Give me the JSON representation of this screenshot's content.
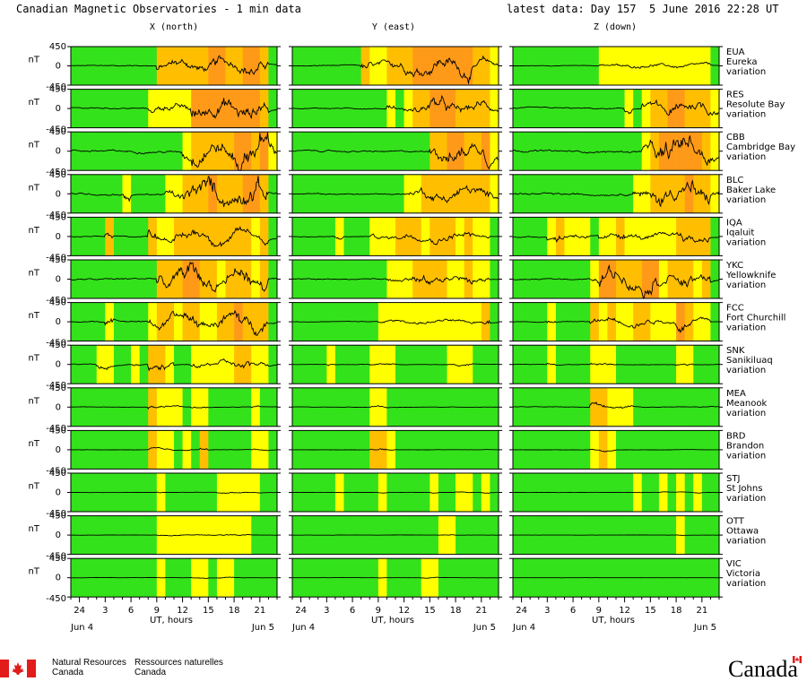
{
  "header": {
    "title": "Canadian Magnetic Observatories - 1 min data",
    "latest": "latest data: Day 157",
    "date": "5 June 2016 22:28 UT"
  },
  "columns": [
    "X (north)",
    "Y (east)",
    "Z (down)"
  ],
  "stations": [
    {
      "code": "EUA",
      "name": "Eureka",
      "suffix": "variation"
    },
    {
      "code": "RES",
      "name": "Resolute Bay",
      "suffix": "variation"
    },
    {
      "code": "CBB",
      "name": "Cambridge Bay",
      "suffix": "variation"
    },
    {
      "code": "BLC",
      "name": "Baker Lake",
      "suffix": "variation"
    },
    {
      "code": "IQA",
      "name": "Iqaluit",
      "suffix": "variation"
    },
    {
      "code": "YKC",
      "name": "Yellowknife",
      "suffix": "variation"
    },
    {
      "code": "FCC",
      "name": "Fort Churchill",
      "suffix": "variation"
    },
    {
      "code": "SNK",
      "name": "Sanikiluaq",
      "suffix": "variation"
    },
    {
      "code": "MEA",
      "name": "Meanook",
      "suffix": "variation"
    },
    {
      "code": "BRD",
      "name": "Brandon",
      "suffix": "variation"
    },
    {
      "code": "STJ",
      "name": "St Johns",
      "suffix": "variation"
    },
    {
      "code": "OTT",
      "name": "Ottawa",
      "suffix": "variation"
    },
    {
      "code": "VIC",
      "name": "Victoria",
      "suffix": "variation"
    }
  ],
  "chart_data": {
    "type": "line",
    "unit": "nT",
    "ytick_labels": [
      "450",
      "0",
      "-450"
    ],
    "ylim": [
      -450,
      450
    ],
    "x_range_hours": [
      23,
      47
    ],
    "xtick_labels": [
      "24",
      "3",
      "6",
      "9",
      "12",
      "15",
      "18",
      "21"
    ],
    "xlabel": "UT, hours",
    "start_label": "Jun  4",
    "end_label": "Jun  5",
    "activity_colors": {
      "quiet": "#33e21a",
      "unsettled": "#ffff00",
      "active": "#ffbf00",
      "storm": "#ff9a18"
    },
    "activity_levels": [
      {
        "X": [
          0,
          0,
          0,
          0,
          0,
          0,
          0,
          0,
          0,
          0,
          2,
          2,
          2,
          2,
          2,
          2,
          3,
          3,
          2,
          2,
          3,
          3,
          2,
          0
        ],
        "Y": [
          0,
          0,
          0,
          0,
          0,
          0,
          0,
          0,
          2,
          1,
          1,
          2,
          2,
          2,
          3,
          3,
          3,
          3,
          3,
          3,
          3,
          2,
          2,
          1
        ],
        "Z": [
          0,
          0,
          0,
          0,
          0,
          0,
          0,
          0,
          0,
          0,
          1,
          1,
          1,
          1,
          1,
          1,
          1,
          1,
          1,
          1,
          1,
          1,
          1,
          0
        ]
      },
      {
        "X": [
          0,
          0,
          0,
          0,
          0,
          0,
          0,
          0,
          0,
          1,
          1,
          1,
          1,
          1,
          3,
          3,
          3,
          3,
          3,
          3,
          3,
          3,
          2,
          0
        ],
        "Y": [
          0,
          0,
          0,
          0,
          0,
          0,
          0,
          0,
          0,
          0,
          0,
          1,
          0,
          1,
          2,
          2,
          3,
          3,
          3,
          2,
          2,
          2,
          2,
          1
        ],
        "Z": [
          0,
          0,
          0,
          0,
          0,
          0,
          0,
          0,
          0,
          0,
          0,
          0,
          0,
          1,
          0,
          1,
          2,
          2,
          3,
          3,
          2,
          2,
          2,
          1
        ]
      },
      {
        "X": [
          0,
          0,
          0,
          0,
          0,
          0,
          0,
          0,
          0,
          0,
          0,
          0,
          0,
          1,
          2,
          2,
          2,
          2,
          2,
          3,
          3,
          2,
          3,
          1
        ],
        "Y": [
          0,
          0,
          0,
          0,
          0,
          0,
          0,
          0,
          0,
          0,
          0,
          0,
          0,
          0,
          0,
          0,
          2,
          2,
          3,
          3,
          2,
          2,
          3,
          1
        ],
        "Z": [
          0,
          0,
          0,
          0,
          0,
          0,
          0,
          0,
          0,
          0,
          0,
          0,
          0,
          0,
          0,
          1,
          2,
          3,
          3,
          3,
          3,
          3,
          2,
          1
        ]
      },
      {
        "X": [
          0,
          0,
          0,
          0,
          0,
          0,
          1,
          0,
          0,
          0,
          0,
          1,
          1,
          2,
          2,
          2,
          3,
          2,
          2,
          2,
          3,
          3,
          2,
          0
        ],
        "Y": [
          0,
          0,
          0,
          0,
          0,
          0,
          0,
          0,
          0,
          0,
          0,
          0,
          0,
          1,
          1,
          2,
          2,
          2,
          2,
          2,
          2,
          2,
          2,
          1
        ],
        "Z": [
          0,
          0,
          0,
          0,
          0,
          0,
          0,
          0,
          0,
          0,
          0,
          0,
          0,
          0,
          1,
          1,
          2,
          2,
          2,
          2,
          3,
          2,
          2,
          1
        ]
      },
      {
        "X": [
          0,
          0,
          0,
          0,
          2,
          0,
          0,
          0,
          0,
          2,
          1,
          1,
          2,
          2,
          2,
          2,
          2,
          2,
          2,
          2,
          2,
          1,
          2,
          0
        ],
        "Y": [
          0,
          0,
          0,
          0,
          0,
          1,
          0,
          0,
          0,
          1,
          1,
          1,
          2,
          2,
          2,
          1,
          2,
          2,
          2,
          1,
          2,
          1,
          1,
          0
        ],
        "Z": [
          0,
          0,
          0,
          0,
          1,
          2,
          1,
          1,
          1,
          0,
          1,
          1,
          2,
          1,
          1,
          1,
          1,
          1,
          1,
          2,
          2,
          2,
          2,
          0
        ]
      },
      {
        "X": [
          0,
          0,
          0,
          0,
          0,
          0,
          0,
          0,
          0,
          0,
          2,
          2,
          2,
          3,
          3,
          2,
          2,
          1,
          2,
          2,
          2,
          1,
          2,
          0
        ],
        "Y": [
          0,
          0,
          0,
          0,
          0,
          0,
          0,
          0,
          0,
          0,
          0,
          1,
          1,
          1,
          2,
          2,
          2,
          2,
          1,
          1,
          2,
          1,
          1,
          0
        ],
        "Z": [
          0,
          0,
          0,
          0,
          0,
          0,
          0,
          0,
          0,
          1,
          3,
          3,
          2,
          2,
          2,
          3,
          3,
          1,
          2,
          2,
          2,
          1,
          2,
          0
        ]
      },
      {
        "X": [
          0,
          0,
          0,
          0,
          1,
          0,
          0,
          0,
          0,
          1,
          2,
          2,
          1,
          2,
          2,
          1,
          1,
          2,
          2,
          3,
          2,
          2,
          2,
          0
        ],
        "Y": [
          0,
          0,
          0,
          0,
          0,
          0,
          0,
          0,
          0,
          0,
          1,
          1,
          1,
          1,
          1,
          1,
          1,
          1,
          1,
          1,
          1,
          1,
          2,
          0
        ],
        "Z": [
          0,
          0,
          0,
          0,
          1,
          0,
          0,
          0,
          0,
          2,
          1,
          2,
          1,
          1,
          2,
          2,
          1,
          1,
          1,
          3,
          2,
          1,
          1,
          0
        ]
      },
      {
        "X": [
          0,
          0,
          0,
          1,
          1,
          0,
          0,
          1,
          0,
          2,
          2,
          1,
          0,
          0,
          1,
          1,
          1,
          1,
          1,
          2,
          2,
          1,
          1,
          0
        ],
        "Y": [
          0,
          0,
          0,
          0,
          1,
          0,
          0,
          0,
          0,
          1,
          1,
          1,
          0,
          0,
          0,
          0,
          0,
          0,
          1,
          1,
          1,
          0,
          0,
          0
        ],
        "Z": [
          0,
          0,
          0,
          0,
          1,
          0,
          0,
          0,
          0,
          1,
          1,
          1,
          0,
          0,
          0,
          0,
          0,
          0,
          0,
          1,
          1,
          0,
          0,
          0
        ]
      },
      {
        "X": [
          0,
          0,
          0,
          0,
          0,
          0,
          0,
          0,
          0,
          2,
          1,
          1,
          1,
          0,
          1,
          1,
          0,
          0,
          0,
          0,
          0,
          1,
          0,
          0
        ],
        "Y": [
          0,
          0,
          0,
          0,
          0,
          0,
          0,
          0,
          0,
          1,
          1,
          0,
          0,
          0,
          0,
          0,
          0,
          0,
          0,
          0,
          0,
          0,
          0,
          0
        ],
        "Z": [
          0,
          0,
          0,
          0,
          0,
          0,
          0,
          0,
          0,
          2,
          2,
          1,
          1,
          1,
          0,
          0,
          0,
          0,
          0,
          0,
          0,
          0,
          0,
          0
        ]
      },
      {
        "X": [
          0,
          0,
          0,
          0,
          0,
          0,
          0,
          0,
          0,
          2,
          1,
          1,
          0,
          1,
          0,
          2,
          0,
          0,
          0,
          0,
          0,
          1,
          1,
          0
        ],
        "Y": [
          0,
          0,
          0,
          0,
          0,
          0,
          0,
          0,
          0,
          2,
          2,
          1,
          0,
          0,
          0,
          0,
          0,
          0,
          0,
          0,
          0,
          0,
          0,
          0
        ],
        "Z": [
          0,
          0,
          0,
          0,
          0,
          0,
          0,
          0,
          0,
          1,
          2,
          1,
          0,
          0,
          0,
          0,
          0,
          0,
          0,
          0,
          0,
          0,
          0,
          0
        ]
      },
      {
        "X": [
          0,
          0,
          0,
          0,
          0,
          0,
          0,
          0,
          0,
          0,
          1,
          0,
          0,
          0,
          0,
          0,
          0,
          1,
          1,
          1,
          1,
          1,
          0,
          0
        ],
        "Y": [
          0,
          0,
          0,
          0,
          0,
          1,
          0,
          0,
          0,
          0,
          1,
          0,
          0,
          0,
          0,
          0,
          1,
          0,
          0,
          1,
          1,
          0,
          1,
          0
        ],
        "Z": [
          0,
          0,
          0,
          0,
          0,
          0,
          0,
          0,
          0,
          0,
          0,
          0,
          0,
          0,
          1,
          0,
          0,
          1,
          0,
          1,
          0,
          1,
          0,
          0
        ]
      },
      {
        "X": [
          0,
          0,
          0,
          0,
          0,
          0,
          0,
          0,
          0,
          0,
          1,
          1,
          1,
          1,
          1,
          1,
          1,
          1,
          1,
          1,
          1,
          0,
          0,
          0
        ],
        "Y": [
          0,
          0,
          0,
          0,
          0,
          0,
          0,
          0,
          0,
          0,
          0,
          0,
          0,
          0,
          0,
          0,
          0,
          1,
          1,
          0,
          0,
          0,
          0,
          0
        ],
        "Z": [
          0,
          0,
          0,
          0,
          0,
          0,
          0,
          0,
          0,
          0,
          0,
          0,
          0,
          0,
          0,
          0,
          0,
          0,
          0,
          1,
          0,
          0,
          0,
          0
        ]
      },
      {
        "X": [
          0,
          0,
          0,
          0,
          0,
          0,
          0,
          0,
          0,
          0,
          1,
          0,
          0,
          0,
          1,
          1,
          0,
          1,
          1,
          0,
          0,
          0,
          0,
          0
        ],
        "Y": [
          0,
          0,
          0,
          0,
          0,
          0,
          0,
          0,
          0,
          0,
          1,
          0,
          0,
          0,
          0,
          1,
          1,
          0,
          0,
          0,
          0,
          0,
          0,
          0
        ],
        "Z": [
          0,
          0,
          0,
          0,
          0,
          0,
          0,
          0,
          0,
          0,
          0,
          0,
          0,
          0,
          0,
          0,
          0,
          0,
          0,
          0,
          0,
          0,
          0,
          0
        ]
      }
    ],
    "trace_amplitude_nT": [
      {
        "X": 150,
        "Y": 170,
        "Z": 90
      },
      {
        "X": 200,
        "Y": 160,
        "Z": 190
      },
      {
        "X": 320,
        "Y": 230,
        "Z": 300
      },
      {
        "X": 280,
        "Y": 180,
        "Z": 300
      },
      {
        "X": 170,
        "Y": 120,
        "Z": 160
      },
      {
        "X": 280,
        "Y": 160,
        "Z": 210
      },
      {
        "X": 200,
        "Y": 90,
        "Z": 130
      },
      {
        "X": 150,
        "Y": 60,
        "Z": 80
      },
      {
        "X": 70,
        "Y": 45,
        "Z": 90
      },
      {
        "X": 50,
        "Y": 35,
        "Z": 40
      },
      {
        "X": 35,
        "Y": 30,
        "Z": 30
      },
      {
        "X": 35,
        "Y": 25,
        "Z": 15
      },
      {
        "X": 30,
        "Y": 25,
        "Z": 15
      }
    ]
  },
  "footer": {
    "dept_en_1": "Natural Resources",
    "dept_en_2": "Canada",
    "dept_fr_1": "Ressources naturelles",
    "dept_fr_2": "Canada",
    "wordmark": "Canada"
  }
}
